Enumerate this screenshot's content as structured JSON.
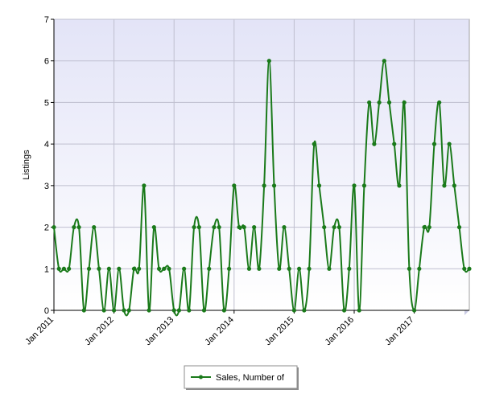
{
  "chart_data": {
    "type": "line",
    "title": "",
    "xlabel": "",
    "ylabel": "Listings",
    "ylim": [
      0,
      7
    ],
    "yticks": [
      0,
      1,
      2,
      3,
      4,
      5,
      6,
      7
    ],
    "x_start": "Jan 2011",
    "x_tick_labels": [
      "Jan 2011",
      "Jan 2012",
      "Jan 2013",
      "Jan 2014",
      "Jan 2015",
      "Jan 2016",
      "Jan 2017"
    ],
    "grid": true,
    "legend_position": "bottom-center",
    "series": [
      {
        "name": "Sales, Number of",
        "color": "#1a7a1a",
        "values": [
          2,
          1,
          1,
          1,
          2,
          2,
          0,
          1,
          2,
          1,
          0,
          1,
          0,
          1,
          0,
          0,
          1,
          1,
          3,
          0,
          2,
          1,
          1,
          1,
          0,
          0,
          1,
          0,
          2,
          2,
          0,
          1,
          2,
          2,
          0,
          1,
          3,
          2,
          2,
          1,
          2,
          1,
          3,
          6,
          3,
          1,
          2,
          1,
          0,
          1,
          0,
          1,
          4,
          3,
          2,
          1,
          2,
          2,
          0,
          1,
          3,
          0,
          3,
          5,
          4,
          5,
          6,
          5,
          4,
          3,
          5,
          1,
          0,
          1,
          2,
          2,
          4,
          5,
          3,
          4,
          3,
          2,
          1,
          1
        ]
      }
    ]
  },
  "legend": {
    "label": "Sales, Number of"
  }
}
